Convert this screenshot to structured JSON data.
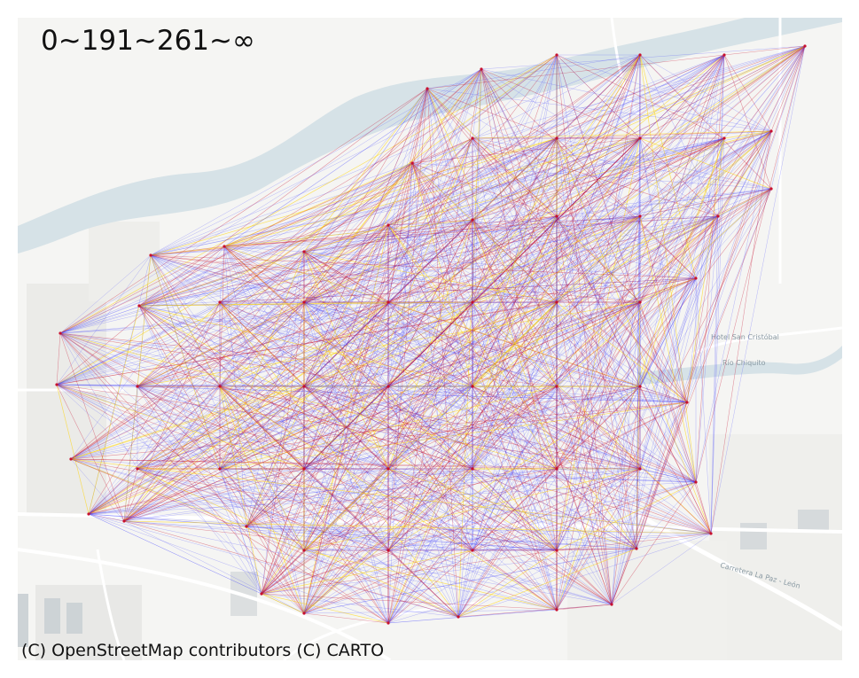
{
  "map": {
    "title": "0~191~261~∞",
    "attribution": "(C) OpenStreetMap contributors (C) CARTO",
    "basemap_labels": [
      "Hotel San Cristóbal",
      "Río Chiquito",
      "Carretera La Paz - León"
    ],
    "line_colors": {
      "low": "#3b3bff",
      "mid": "#c8102e",
      "high": "#ffd400"
    },
    "background_color": "#f5f5f3",
    "water_color": "#cfdde3",
    "road_color": "#ffffff"
  }
}
